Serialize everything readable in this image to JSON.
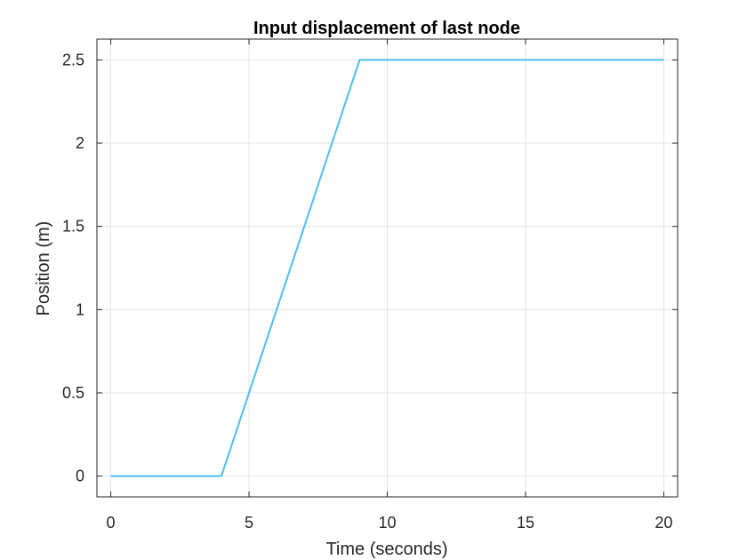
{
  "colors": {
    "series": "#4dbeee",
    "grid": "#e3e3e3",
    "axis": "#262626",
    "background": "#ffffff"
  },
  "chart_data": {
    "type": "line",
    "title": "Input displacement of last node",
    "xlabel": "Time (seconds)",
    "ylabel": "Position (m)",
    "xlim": [
      -0.5,
      20.5
    ],
    "ylim": [
      -0.125,
      2.625
    ],
    "xticks": [
      0,
      5,
      10,
      15,
      20
    ],
    "xtick_labels": [
      "0",
      "5",
      "10",
      "15",
      "20"
    ],
    "yticks": [
      0,
      0.5,
      1,
      1.5,
      2,
      2.5
    ],
    "ytick_labels": [
      "0",
      "0.5",
      "1",
      "1.5",
      "2",
      "2.5"
    ],
    "grid": true,
    "box": true,
    "series": [
      {
        "x": [
          0,
          4,
          9,
          20
        ],
        "y": [
          0,
          0,
          2.5,
          2.5
        ]
      }
    ]
  }
}
